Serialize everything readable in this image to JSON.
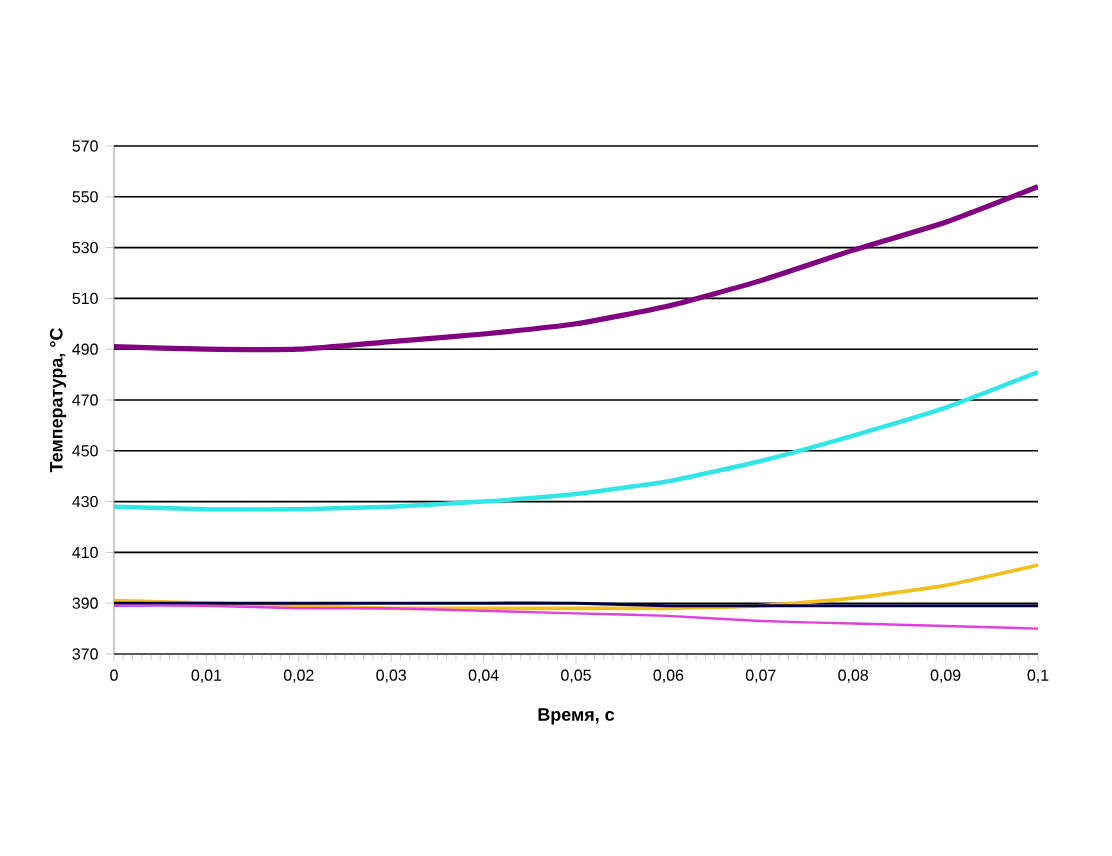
{
  "chart_data": {
    "type": "line",
    "xlabel": "Время, с",
    "ylabel": "Температура, °C",
    "x": [
      0,
      0.01,
      0.02,
      0.03,
      0.04,
      0.05,
      0.06,
      0.07,
      0.08,
      0.09,
      0.1
    ],
    "series": [
      {
        "color": "#800080",
        "values": [
          491,
          490,
          490,
          493,
          496,
          500,
          507,
          517,
          529,
          540,
          554
        ]
      },
      {
        "color": "#33e6e6",
        "values": [
          428,
          427,
          427,
          428,
          430,
          433,
          438,
          446,
          456,
          467,
          481
        ]
      },
      {
        "color": "#f0c020",
        "values": [
          391,
          390,
          389,
          388,
          388,
          388,
          388,
          389,
          392,
          397,
          405
        ]
      },
      {
        "color": "#000040",
        "values": [
          390,
          390,
          390,
          390,
          390,
          390,
          389,
          389,
          389,
          389,
          389
        ]
      },
      {
        "color": "#e040e0",
        "values": [
          389,
          389,
          388,
          388,
          387,
          386,
          385,
          383,
          382,
          381,
          380
        ]
      }
    ],
    "xlim": [
      0,
      0.1
    ],
    "ylim": [
      370,
      570
    ],
    "xticks": [
      0,
      {
        "value": 0.01,
        "label": "0,01"
      },
      {
        "value": 0.02,
        "label": "0,02"
      },
      {
        "value": 0.03,
        "label": "0,03"
      },
      {
        "value": 0.04,
        "label": "0,04"
      },
      {
        "value": 0.05,
        "label": "0,05"
      },
      {
        "value": 0.06,
        "label": "0,06"
      },
      {
        "value": 0.07,
        "label": "0,07"
      },
      {
        "value": 0.08,
        "label": "0,08"
      },
      {
        "value": 0.09,
        "label": "0,09"
      },
      {
        "value": 0.1,
        "label": "0,1"
      }
    ],
    "yticks": [
      370,
      390,
      410,
      430,
      450,
      470,
      490,
      510,
      530,
      550,
      570
    ],
    "grid": "y"
  }
}
